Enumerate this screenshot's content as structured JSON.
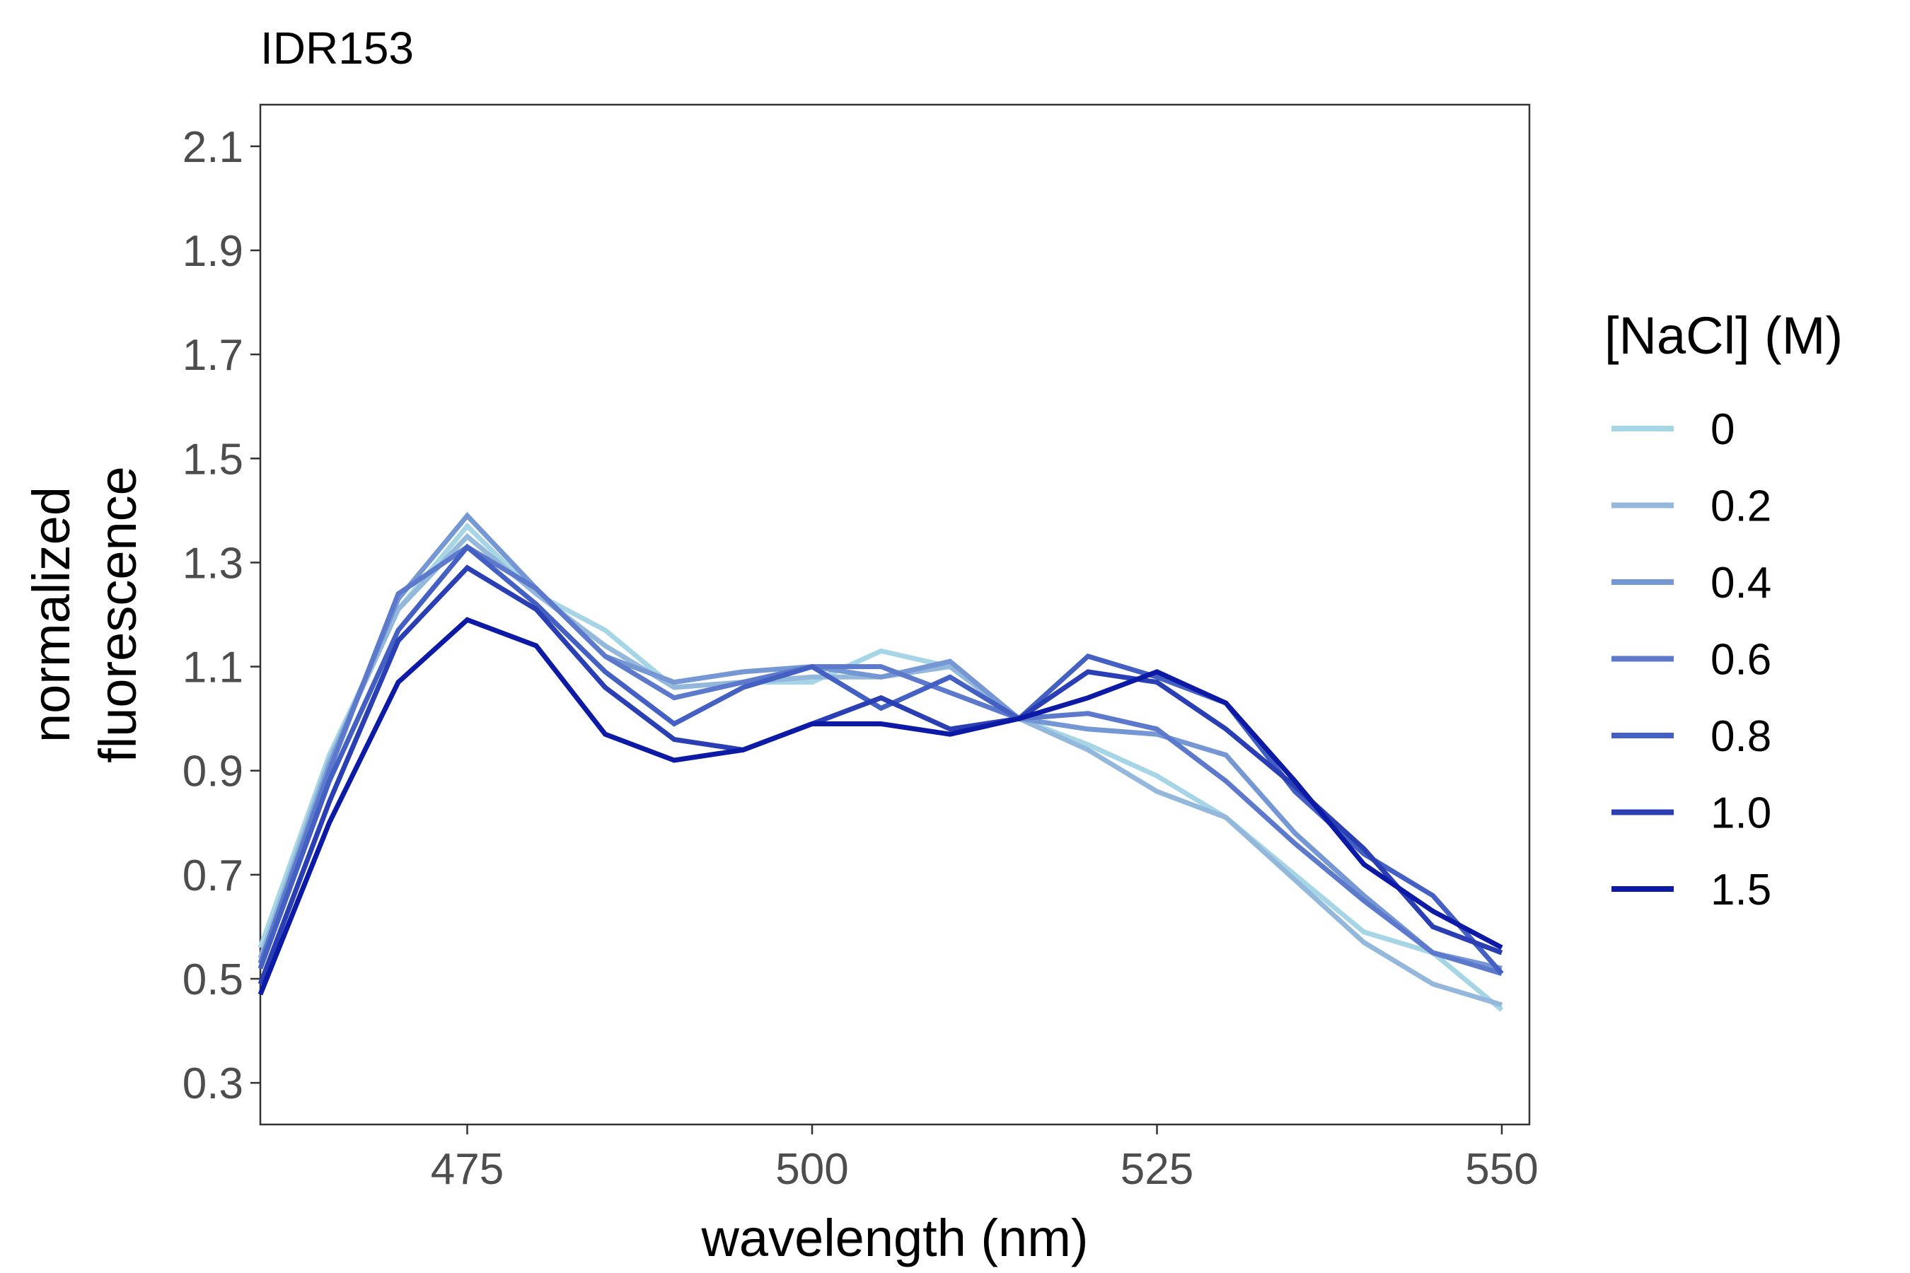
{
  "chart_data": {
    "type": "line",
    "title": "IDR153",
    "xlabel": "wavelength (nm)",
    "ylabel": [
      "normalized",
      "fluorescence"
    ],
    "xlim": [
      460,
      552
    ],
    "ylim": [
      0.22,
      2.18
    ],
    "xticks": [
      "475",
      "500",
      "525",
      "550"
    ],
    "yticks": [
      "0.3",
      "0.5",
      "0.7",
      "0.9",
      "1.1",
      "1.3",
      "1.5",
      "1.7",
      "1.9",
      "2.1"
    ],
    "grid": false,
    "legend": {
      "title": "[NaCl] (M)",
      "position": "right"
    },
    "x": [
      460,
      465,
      470,
      475,
      480,
      485,
      490,
      495,
      500,
      505,
      510,
      515,
      520,
      525,
      530,
      535,
      540,
      545,
      550
    ],
    "series": [
      {
        "name": "0",
        "color": "#a6d5e6",
        "values": [
          0.56,
          0.93,
          1.21,
          1.37,
          1.24,
          1.17,
          1.06,
          1.07,
          1.07,
          1.13,
          1.1,
          1.0,
          0.95,
          0.89,
          0.81,
          0.7,
          0.59,
          0.55,
          0.44
        ]
      },
      {
        "name": "0.2",
        "color": "#93b8dc",
        "values": [
          0.54,
          0.92,
          1.21,
          1.35,
          1.24,
          1.14,
          1.06,
          1.07,
          1.08,
          1.08,
          1.1,
          1.0,
          0.94,
          0.86,
          0.81,
          0.69,
          0.57,
          0.49,
          0.45
        ]
      },
      {
        "name": "0.4",
        "color": "#7597d4",
        "values": [
          0.53,
          0.91,
          1.23,
          1.39,
          1.25,
          1.12,
          1.07,
          1.09,
          1.1,
          1.08,
          1.11,
          1.0,
          0.98,
          0.97,
          0.93,
          0.78,
          0.66,
          0.55,
          0.52
        ]
      },
      {
        "name": "0.6",
        "color": "#5c79cc",
        "values": [
          0.53,
          0.9,
          1.24,
          1.33,
          1.25,
          1.12,
          1.04,
          1.07,
          1.1,
          1.1,
          1.05,
          1.0,
          1.01,
          0.98,
          0.88,
          0.76,
          0.65,
          0.55,
          0.51
        ]
      },
      {
        "name": "0.8",
        "color": "#4360c2",
        "values": [
          0.52,
          0.88,
          1.17,
          1.33,
          1.22,
          1.09,
          0.99,
          1.06,
          1.1,
          1.02,
          1.08,
          1.0,
          1.12,
          1.08,
          1.03,
          0.86,
          0.74,
          0.66,
          0.51
        ]
      },
      {
        "name": "1.0",
        "color": "#2b3fb5",
        "values": [
          0.49,
          0.84,
          1.15,
          1.29,
          1.21,
          1.06,
          0.96,
          0.94,
          0.99,
          1.04,
          0.98,
          1.0,
          1.09,
          1.07,
          0.98,
          0.87,
          0.75,
          0.6,
          0.55
        ]
      },
      {
        "name": "1.5",
        "color": "#0c1aa6",
        "values": [
          0.47,
          0.8,
          1.07,
          1.19,
          1.14,
          0.97,
          0.92,
          0.94,
          0.99,
          0.99,
          0.97,
          1.0,
          1.04,
          1.09,
          1.03,
          0.88,
          0.72,
          0.63,
          0.56
        ]
      }
    ]
  }
}
